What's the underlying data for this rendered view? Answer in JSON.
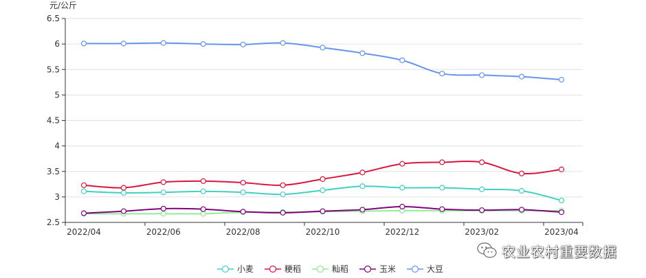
{
  "chart_data": {
    "type": "line",
    "title": "",
    "unit": "元/公斤",
    "xlabel": "",
    "ylabel": "",
    "ylim": [
      2.5,
      6.5
    ],
    "yticks": [
      "2.5",
      "3",
      "3.5",
      "4",
      "4.5",
      "5",
      "5.5",
      "6",
      "6.5"
    ],
    "x": [
      "2022/04",
      "2022/05",
      "2022/06",
      "2022/07",
      "2022/08",
      "2022/09",
      "2022/10",
      "2022/11",
      "2022/12",
      "2023/01",
      "2023/02",
      "2023/03",
      "2023/04"
    ],
    "xtick_labels": [
      "2022/04",
      "2022/06",
      "2022/08",
      "2022/10",
      "2022/12",
      "2023/02",
      "2023/04"
    ],
    "grid": "horizontal",
    "legend_position": "bottom-center",
    "series": [
      {
        "name": "小麦",
        "color": "#40d0c0",
        "values": [
          3.11,
          3.08,
          3.09,
          3.11,
          3.09,
          3.05,
          3.13,
          3.21,
          3.18,
          3.18,
          3.15,
          3.12,
          2.93
        ]
      },
      {
        "name": "粳稻",
        "color": "#dc143c",
        "values": [
          3.23,
          3.18,
          3.29,
          3.31,
          3.28,
          3.23,
          3.35,
          3.48,
          3.65,
          3.68,
          3.68,
          3.46,
          3.54
        ]
      },
      {
        "name": "籼稻",
        "color": "#90ee90",
        "values": [
          2.67,
          2.67,
          2.67,
          2.67,
          2.7,
          2.7,
          2.71,
          2.72,
          2.73,
          2.73,
          2.73,
          2.73,
          2.73
        ]
      },
      {
        "name": "玉米",
        "color": "#800080",
        "values": [
          2.68,
          2.72,
          2.77,
          2.76,
          2.71,
          2.69,
          2.72,
          2.75,
          2.81,
          2.76,
          2.74,
          2.75,
          2.7
        ]
      },
      {
        "name": "大豆",
        "color": "#6495ed",
        "values": [
          6.01,
          6.01,
          6.02,
          6.0,
          5.99,
          6.02,
          5.93,
          5.82,
          5.68,
          5.42,
          5.39,
          5.36,
          5.3
        ]
      }
    ]
  },
  "watermark": {
    "text": "农业农村重要数据",
    "icon": "wechat-icon"
  }
}
